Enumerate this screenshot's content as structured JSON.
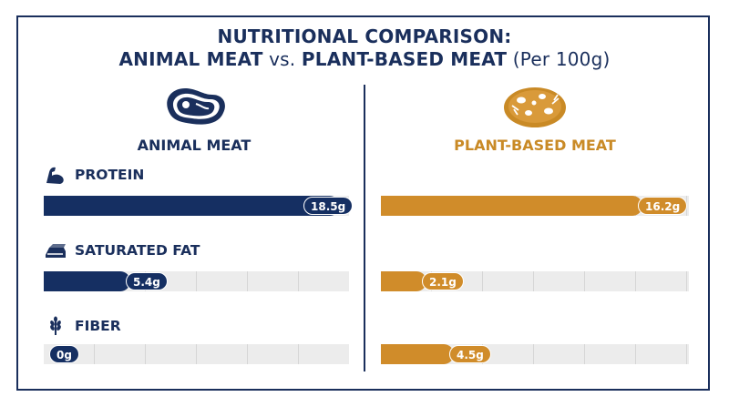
{
  "title": {
    "line1": "NUTRITIONAL COMPARISON:",
    "line2_part1": "ANIMAL MEAT",
    "line2_vs": " vs. ",
    "line2_part2": "PLANT-BASED MEAT",
    "line2_unit": " (Per 100g)"
  },
  "columns": {
    "animal": {
      "label": "ANIMAL MEAT",
      "icon": "steak-icon",
      "color": "#152f62"
    },
    "plant": {
      "label": "PLANT-BASED MEAT",
      "icon": "plant-patty-icon",
      "color": "#d08c2a"
    }
  },
  "chart_data": {
    "type": "bar",
    "categories": [
      "PROTEIN",
      "SATURATED FAT",
      "FIBER"
    ],
    "category_icons": [
      "flexed-arm-icon",
      "butter-icon",
      "wheat-icon"
    ],
    "series": [
      {
        "name": "ANIMAL MEAT",
        "values": [
          18.5,
          5.4,
          0
        ],
        "labels": [
          "18.5g",
          "5.4g",
          "0g"
        ]
      },
      {
        "name": "PLANT-BASED MEAT",
        "values": [
          16.2,
          2.1,
          4.5
        ],
        "labels": [
          "16.2g",
          "2.1g",
          "4.5g"
        ]
      }
    ],
    "unit": "g",
    "xlim": [
      0,
      20
    ],
    "grid": true
  }
}
